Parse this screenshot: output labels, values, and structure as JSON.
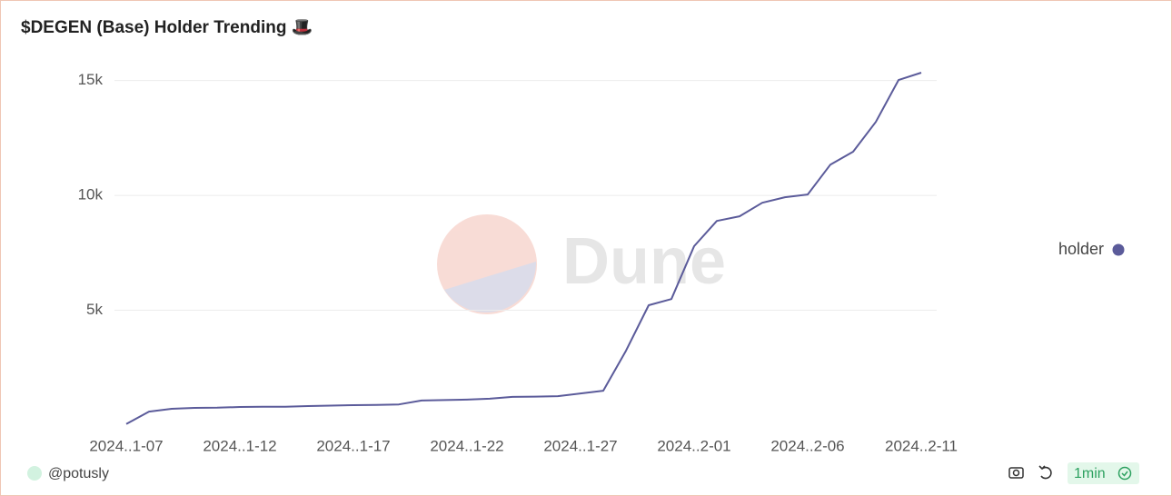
{
  "chart_data": {
    "type": "line",
    "title": "$DEGEN (Base) Holder Trending 🎩",
    "watermark": "Dune",
    "categories": [
      "2024..1-07",
      null,
      null,
      null,
      null,
      "2024..1-12",
      null,
      null,
      null,
      null,
      "2024..1-17",
      null,
      null,
      null,
      null,
      "2024..1-22",
      null,
      null,
      null,
      null,
      "2024..1-27",
      null,
      null,
      null,
      null,
      "2024..2-01",
      null,
      null,
      null,
      null,
      "2024..2-06",
      null,
      null,
      null,
      null,
      "2024..2-11"
    ],
    "series": [
      {
        "name": "holder",
        "color": "#5b5b9a",
        "values": [
          50,
          590,
          710,
          750,
          760,
          790,
          800,
          800,
          830,
          850,
          870,
          880,
          900,
          1070,
          1090,
          1110,
          1150,
          1230,
          1240,
          1260,
          1380,
          1500,
          3240,
          5220,
          5490,
          7790,
          8890,
          9090,
          9680,
          9920,
          10040,
          11340,
          11900,
          13200,
          15020,
          15340
        ]
      }
    ],
    "ylim": [
      0,
      15500
    ],
    "yticks": [
      {
        "value": 5000,
        "label": "5k"
      },
      {
        "value": 10000,
        "label": "10k"
      },
      {
        "value": 15000,
        "label": "15k"
      }
    ],
    "grid": true,
    "legend": "right"
  },
  "footer": {
    "author": "@potusly",
    "refresh": "1min"
  }
}
